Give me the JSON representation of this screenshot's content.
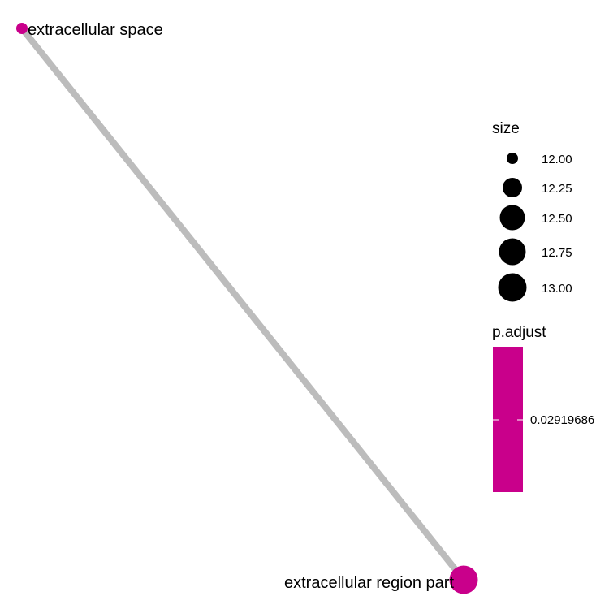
{
  "chart_data": {
    "type": "network",
    "nodes": [
      {
        "id": "n1",
        "label": "extracellular space",
        "size": 12.0,
        "p_adjust": 0.02919686
      },
      {
        "id": "n2",
        "label": "extracellular region part",
        "size": 13.0,
        "p_adjust": 0.02919686
      }
    ],
    "edges": [
      {
        "source": "n1",
        "target": "n2"
      }
    ],
    "legend": {
      "size": {
        "title": "size",
        "entries": [
          12.0,
          12.25,
          12.5,
          12.75,
          13.0
        ],
        "labels": [
          "12.00",
          "12.25",
          "12.50",
          "12.75",
          "13.00"
        ]
      },
      "color": {
        "title": "p.adjust",
        "tick_label": "0.02919686"
      }
    },
    "colors": {
      "node": "#c9008b",
      "edge": "#bcbcbc",
      "legend_point": "#000000"
    }
  }
}
